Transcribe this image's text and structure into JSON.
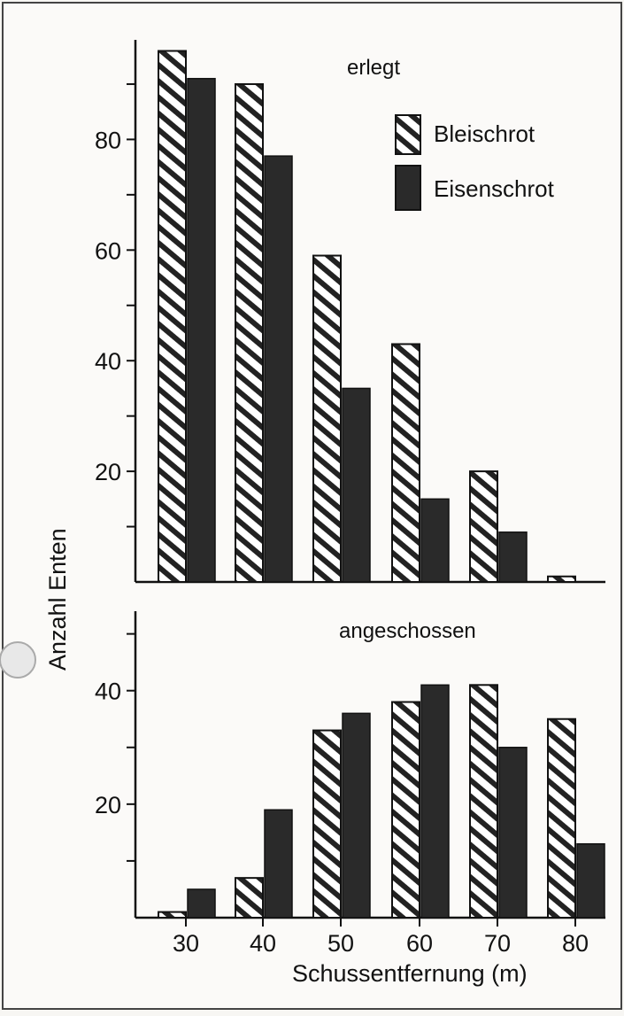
{
  "chart_data": [
    {
      "type": "bar",
      "title": "erlegt",
      "categories": [
        "30",
        "40",
        "50",
        "60",
        "70",
        "80"
      ],
      "series": [
        {
          "name": "Bleischrot",
          "values": [
            96,
            90,
            59,
            43,
            20,
            1
          ]
        },
        {
          "name": "Eisenschrot",
          "values": [
            91,
            77,
            35,
            15,
            9,
            0
          ]
        }
      ],
      "ylim": [
        0,
        98
      ],
      "yticks": [
        "20",
        "40",
        "60",
        "80"
      ],
      "ylabel": "Anzahl Enten",
      "legend": "top-right",
      "grid": false,
      "colors": {
        "Bleischrot": "#ffffff",
        "Eisenschrot": "#2a2a2a",
        "hatch": "#222222"
      }
    },
    {
      "type": "bar",
      "title": "angeschossen",
      "categories": [
        "30",
        "40",
        "50",
        "60",
        "70",
        "80"
      ],
      "series": [
        {
          "name": "Bleischrot",
          "values": [
            1,
            7,
            33,
            38,
            41,
            35
          ]
        },
        {
          "name": "Eisenschrot",
          "values": [
            5,
            19,
            36,
            41,
            30,
            13
          ]
        }
      ],
      "ylim": [
        0,
        54
      ],
      "yticks": [
        "20",
        "40"
      ],
      "xticks": [
        "30",
        "40",
        "50",
        "60",
        "70",
        "80"
      ],
      "xlabel": "Schussentfernung (m)",
      "grid": false
    }
  ]
}
